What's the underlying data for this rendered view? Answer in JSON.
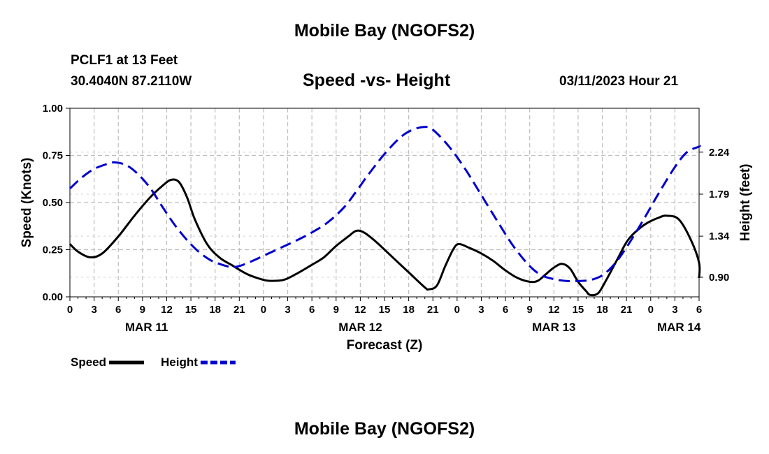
{
  "page": {
    "title_top": "Mobile Bay (NGOFS2)",
    "title_bottom": "Mobile Bay (NGOFS2)",
    "station": "PCLF1 at 13 Feet",
    "coords": "30.4040N  87.2110W",
    "subtitle": "Speed -vs- Height",
    "datetime": "03/11/2023 Hour 21"
  },
  "chart_data": {
    "type": "line",
    "title": "Speed -vs- Height",
    "xlabel": "Forecast (Z)",
    "ylabel_left": "Speed (Knots)",
    "ylabel_right": "Height (feet)",
    "x_range_hours": [
      0,
      78
    ],
    "x_ticks": [
      {
        "h": 0,
        "label": "0"
      },
      {
        "h": 3,
        "label": "3"
      },
      {
        "h": 6,
        "label": "6"
      },
      {
        "h": 9,
        "label": "9"
      },
      {
        "h": 12,
        "label": "12"
      },
      {
        "h": 15,
        "label": "15"
      },
      {
        "h": 18,
        "label": "18"
      },
      {
        "h": 21,
        "label": "21"
      },
      {
        "h": 24,
        "label": "0"
      },
      {
        "h": 27,
        "label": "3"
      },
      {
        "h": 30,
        "label": "6"
      },
      {
        "h": 33,
        "label": "9"
      },
      {
        "h": 36,
        "label": "12"
      },
      {
        "h": 39,
        "label": "15"
      },
      {
        "h": 42,
        "label": "18"
      },
      {
        "h": 45,
        "label": "21"
      },
      {
        "h": 48,
        "label": "0"
      },
      {
        "h": 51,
        "label": "3"
      },
      {
        "h": 54,
        "label": "6"
      },
      {
        "h": 57,
        "label": "9"
      },
      {
        "h": 60,
        "label": "12"
      },
      {
        "h": 63,
        "label": "15"
      },
      {
        "h": 66,
        "label": "18"
      },
      {
        "h": 69,
        "label": "21"
      },
      {
        "h": 72,
        "label": "0"
      },
      {
        "h": 75,
        "label": "3"
      },
      {
        "h": 78,
        "label": "6"
      }
    ],
    "date_labels": [
      {
        "h": 9.5,
        "label": "MAR 11"
      },
      {
        "h": 36,
        "label": "MAR 12"
      },
      {
        "h": 60,
        "label": "MAR 13"
      },
      {
        "h": 75.5,
        "label": "MAR 14"
      }
    ],
    "y_left": {
      "min": 0,
      "max": 1,
      "ticks": [
        0,
        0.25,
        0.5,
        0.75,
        1.0
      ],
      "tick_labels": [
        "0.00",
        "0.25",
        "0.50",
        "0.75",
        "1.00"
      ]
    },
    "y_right": {
      "min": 0.69,
      "max": 2.71,
      "ticks": [
        0.9,
        1.34,
        1.79,
        2.24
      ],
      "tick_labels": [
        "0.90",
        "1.34",
        "1.79",
        "2.24"
      ]
    },
    "series": [
      {
        "name": "Speed",
        "axis": "left",
        "color": "#000000",
        "dash": "solid",
        "points": [
          [
            0,
            0.28
          ],
          [
            1,
            0.24
          ],
          [
            2.5,
            0.21
          ],
          [
            4,
            0.23
          ],
          [
            6,
            0.32
          ],
          [
            8,
            0.43
          ],
          [
            10,
            0.53
          ],
          [
            11.5,
            0.59
          ],
          [
            12.5,
            0.62
          ],
          [
            13.5,
            0.61
          ],
          [
            14.5,
            0.53
          ],
          [
            15.5,
            0.41
          ],
          [
            17,
            0.28
          ],
          [
            18.5,
            0.21
          ],
          [
            20,
            0.17
          ],
          [
            22,
            0.12
          ],
          [
            24,
            0.09
          ],
          [
            25,
            0.085
          ],
          [
            26.5,
            0.09
          ],
          [
            28,
            0.12
          ],
          [
            30,
            0.17
          ],
          [
            31.5,
            0.21
          ],
          [
            33,
            0.27
          ],
          [
            34.5,
            0.32
          ],
          [
            35.5,
            0.35
          ],
          [
            36.5,
            0.34
          ],
          [
            38,
            0.29
          ],
          [
            40,
            0.21
          ],
          [
            42,
            0.13
          ],
          [
            44,
            0.05
          ],
          [
            44.5,
            0.04
          ],
          [
            45.5,
            0.06
          ],
          [
            46.5,
            0.16
          ],
          [
            47.5,
            0.25
          ],
          [
            48.2,
            0.28
          ],
          [
            49.5,
            0.26
          ],
          [
            51,
            0.23
          ],
          [
            52.5,
            0.19
          ],
          [
            54,
            0.14
          ],
          [
            55.5,
            0.1
          ],
          [
            57,
            0.08
          ],
          [
            58,
            0.085
          ],
          [
            59,
            0.12
          ],
          [
            60,
            0.155
          ],
          [
            61,
            0.175
          ],
          [
            62,
            0.15
          ],
          [
            63,
            0.08
          ],
          [
            64,
            0.03
          ],
          [
            64.5,
            0.01
          ],
          [
            65.5,
            0.02
          ],
          [
            66.5,
            0.09
          ],
          [
            68,
            0.21
          ],
          [
            69,
            0.29
          ],
          [
            70,
            0.34
          ],
          [
            71.5,
            0.39
          ],
          [
            73,
            0.42
          ],
          [
            74,
            0.43
          ],
          [
            75.5,
            0.41
          ],
          [
            77,
            0.3
          ],
          [
            78,
            0.18
          ],
          [
            78.5,
            0.1
          ]
        ]
      },
      {
        "name": "Height",
        "axis": "right",
        "color": "#0000cc",
        "dash": "dashed",
        "points": [
          [
            0,
            1.85
          ],
          [
            1.5,
            1.97
          ],
          [
            3,
            2.06
          ],
          [
            4.5,
            2.11
          ],
          [
            5.5,
            2.13
          ],
          [
            7,
            2.1
          ],
          [
            8.5,
            2.0
          ],
          [
            10,
            1.85
          ],
          [
            11.5,
            1.65
          ],
          [
            13,
            1.46
          ],
          [
            14.5,
            1.3
          ],
          [
            16,
            1.17
          ],
          [
            17.5,
            1.08
          ],
          [
            19,
            1.03
          ],
          [
            20,
            1.01
          ],
          [
            21,
            1.02
          ],
          [
            22.5,
            1.07
          ],
          [
            24,
            1.13
          ],
          [
            26,
            1.21
          ],
          [
            28,
            1.29
          ],
          [
            30,
            1.38
          ],
          [
            32,
            1.49
          ],
          [
            34,
            1.65
          ],
          [
            35.5,
            1.82
          ],
          [
            37,
            2.0
          ],
          [
            39,
            2.22
          ],
          [
            41,
            2.4
          ],
          [
            42.5,
            2.48
          ],
          [
            44,
            2.51
          ],
          [
            45,
            2.48
          ],
          [
            47,
            2.3
          ],
          [
            49,
            2.06
          ],
          [
            51,
            1.78
          ],
          [
            53,
            1.5
          ],
          [
            55,
            1.23
          ],
          [
            57,
            1.02
          ],
          [
            58.5,
            0.92
          ],
          [
            60,
            0.88
          ],
          [
            61.5,
            0.86
          ],
          [
            63,
            0.86
          ],
          [
            64.5,
            0.87
          ],
          [
            66,
            0.92
          ],
          [
            67.5,
            1.04
          ],
          [
            69,
            1.22
          ],
          [
            71,
            1.5
          ],
          [
            73,
            1.8
          ],
          [
            75,
            2.08
          ],
          [
            76.5,
            2.24
          ],
          [
            78,
            2.3
          ],
          [
            78.5,
            2.31
          ]
        ]
      }
    ],
    "legend": [
      {
        "name": "Speed",
        "color": "#000000",
        "dash": "solid"
      },
      {
        "name": "Height",
        "color": "#0000cc",
        "dash": "dashed"
      }
    ],
    "legend_position": "bottom-left",
    "grid": true
  }
}
